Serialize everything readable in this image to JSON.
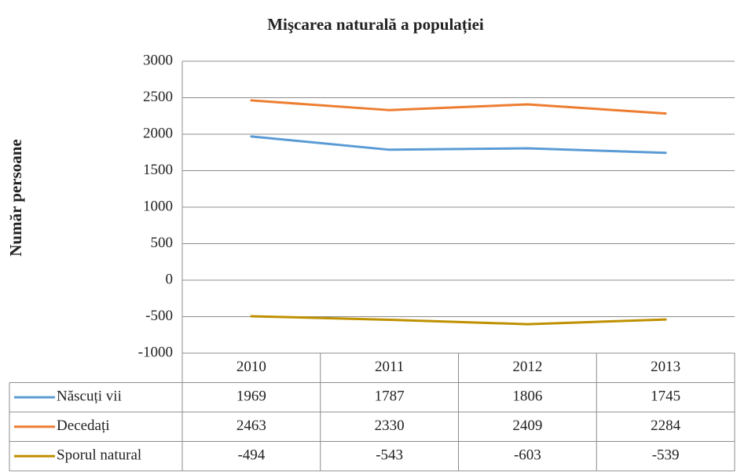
{
  "chart_data": {
    "type": "line",
    "title": "Mişcarea naturală a populației",
    "y_label": "Număr persoane",
    "categories": [
      "2010",
      "2011",
      "2012",
      "2013"
    ],
    "series": [
      {
        "name": "Născuți vii",
        "color": "#5b9bd5",
        "values": [
          1969,
          1787,
          1806,
          1745
        ]
      },
      {
        "name": "Decedați",
        "color": "#ed7d31",
        "values": [
          2463,
          2330,
          2409,
          2284
        ]
      },
      {
        "name": "Sporul natural",
        "color": "#bf9000",
        "values": [
          -494,
          -543,
          -603,
          -539
        ]
      }
    ],
    "ylim": [
      -1000,
      3000
    ],
    "yticks": [
      -1000,
      -500,
      0,
      500,
      1000,
      1500,
      2000,
      2500,
      3000
    ],
    "grid": true,
    "data_table": true
  }
}
